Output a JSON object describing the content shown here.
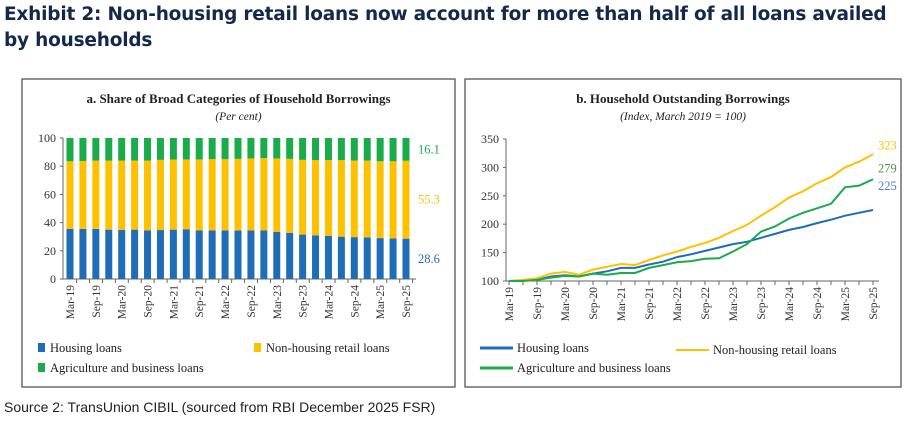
{
  "title": "Exhibit 2: Non-housing retail loans now account for more than half of all loans availed by households",
  "source": "Source 2: TransUnion CIBIL (sourced from RBI December 2025 FSR)",
  "colors": {
    "housing": "#1f6db6",
    "non_housing": "#ffc000",
    "agri": "#1aab4a",
    "label_green_b": "#5b8f3c",
    "label_blue_b": "#4a7cc4"
  },
  "chart_data": [
    {
      "type": "bar",
      "stacked": true,
      "title": "a. Share of Broad Categories of Household Borrowings",
      "subtitle": "(Per cent)",
      "ylim": [
        0,
        100
      ],
      "yticks": [
        0,
        20,
        40,
        60,
        80,
        100
      ],
      "categories": [
        "Mar-19",
        "Jun-19",
        "Sep-19",
        "Dec-19",
        "Mar-20",
        "Jun-20",
        "Sep-20",
        "Dec-20",
        "Mar-21",
        "Jun-21",
        "Sep-21",
        "Dec-21",
        "Mar-22",
        "Jun-22",
        "Sep-22",
        "Dec-22",
        "Mar-23",
        "Jun-23",
        "Sep-23",
        "Dec-23",
        "Mar-24",
        "Jun-24",
        "Sep-24",
        "Dec-24",
        "Mar-25",
        "Jun-25",
        "Sep-25"
      ],
      "tick_labels": [
        "Mar-19",
        "Sep-19",
        "Mar-20",
        "Sep-20",
        "Mar-21",
        "Sep-21",
        "Mar-22",
        "Sep-22",
        "Mar-23",
        "Sep-23",
        "Mar-24",
        "Sep-24",
        "Mar-25",
        "Sep-25"
      ],
      "series": [
        {
          "name": "Housing loans",
          "values": [
            35.5,
            35.5,
            35.5,
            35,
            34.8,
            35,
            34.5,
            34.7,
            35,
            35.3,
            34.5,
            34.5,
            34.5,
            34.5,
            34.5,
            34.5,
            33.5,
            32.7,
            31.5,
            31,
            30.5,
            30,
            29.7,
            29.5,
            29,
            28.8,
            28.6
          ]
        },
        {
          "name": "Non-housing retail loans",
          "values": [
            48,
            48.2,
            48.5,
            49,
            49.2,
            49,
            49.5,
            49.8,
            49.7,
            49.5,
            50.3,
            50.5,
            50.5,
            50.7,
            51,
            51.2,
            52,
            52.5,
            53,
            53.3,
            53.8,
            54.3,
            54.3,
            54.5,
            54.5,
            54.7,
            55.3
          ]
        },
        {
          "name": "Agriculture and business loans",
          "values": [
            16.5,
            16.3,
            16,
            16,
            16,
            16,
            16,
            15.5,
            15.3,
            15.2,
            15.2,
            15,
            15,
            14.8,
            14.5,
            14.3,
            14.5,
            14.8,
            15.5,
            15.7,
            15.7,
            15.7,
            16,
            16,
            16.5,
            16.5,
            16.1
          ]
        }
      ],
      "end_labels": [
        "28.6",
        "55.3",
        "16.1"
      ],
      "legend": "bottom"
    },
    {
      "type": "line",
      "title": "b. Household Outstanding Borrowings",
      "subtitle": "(Index, March 2019 = 100)",
      "ylim": [
        100,
        350
      ],
      "yticks": [
        100,
        150,
        200,
        250,
        300,
        350
      ],
      "categories": [
        "Mar-19",
        "Jun-19",
        "Sep-19",
        "Dec-19",
        "Mar-20",
        "Jun-20",
        "Sep-20",
        "Dec-20",
        "Mar-21",
        "Jun-21",
        "Sep-21",
        "Dec-21",
        "Mar-22",
        "Jun-22",
        "Sep-22",
        "Dec-22",
        "Mar-23",
        "Jun-23",
        "Sep-23",
        "Dec-23",
        "Mar-24",
        "Jun-24",
        "Sep-24",
        "Dec-24",
        "Mar-25",
        "Jun-25",
        "Sep-25"
      ],
      "tick_labels": [
        "Mar-19",
        "Sep-19",
        "Mar-20",
        "Sep-20",
        "Mar-21",
        "Sep-21",
        "Mar-22",
        "Sep-22",
        "Mar-23",
        "Sep-23",
        "Mar-24",
        "Sep-24",
        "Mar-25",
        "Sep-25"
      ],
      "series": [
        {
          "name": "Housing loans",
          "values": [
            100,
            101,
            102,
            108,
            110,
            108,
            113,
            117,
            123,
            123,
            129,
            134,
            142,
            147,
            153,
            159,
            165,
            169,
            176,
            183,
            190,
            195,
            202,
            208,
            215,
            220,
            225
          ]
        },
        {
          "name": "Non-housing retail loans",
          "values": [
            100,
            102,
            105,
            113,
            116,
            111,
            120,
            125,
            130,
            128,
            137,
            145,
            152,
            160,
            167,
            176,
            188,
            199,
            215,
            230,
            247,
            258,
            272,
            283,
            300,
            310,
            323
          ]
        },
        {
          "name": "Agriculture and business loans",
          "values": [
            100,
            100,
            102,
            106,
            109,
            108,
            113,
            111,
            114,
            114,
            123,
            128,
            133,
            135,
            139,
            140,
            152,
            165,
            187,
            196,
            210,
            220,
            228,
            236,
            265,
            268,
            279
          ]
        }
      ],
      "end_labels": [
        "225",
        "323",
        "279"
      ],
      "legend": "bottom"
    }
  ]
}
